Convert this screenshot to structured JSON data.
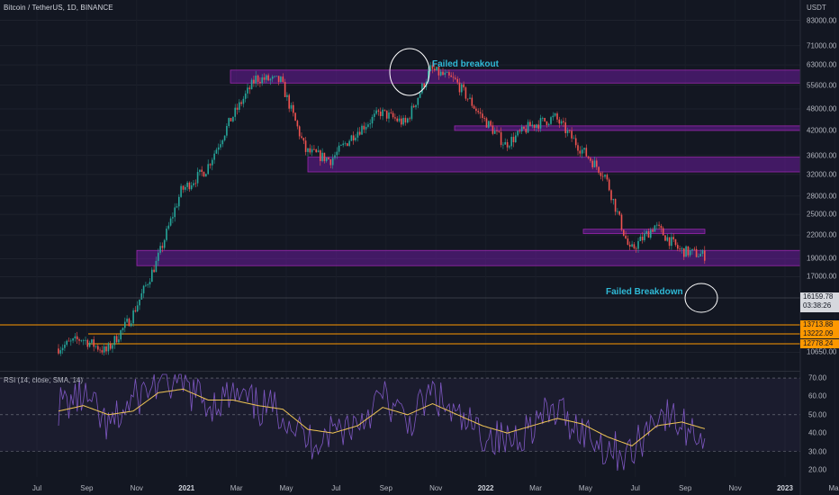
{
  "header": {
    "symbol_line": "Bitcoin / TetherUS, 1D, BINANCE",
    "currency": "USDT"
  },
  "colors": {
    "background": "#131722",
    "up_candle": "#26a69a",
    "down_candle": "#ef5350",
    "zone_fill": "#6a1b9a",
    "zone_border": "#9c27b0",
    "level_line": "#ff9800",
    "annotation": "#2fb9d6",
    "rsi_line": "#7e57c2",
    "rsi_ma": "#f0c555"
  },
  "annotations": {
    "failed_breakout": "Failed breakout",
    "failed_breakdown": "Failed Breakdown"
  },
  "price_axis_labels": [
    "83000.00",
    "71000.00",
    "63000.00",
    "55600.00",
    "48000.00",
    "42000.00",
    "36000.00",
    "32000.00",
    "28000.00",
    "25000.00",
    "22000.00",
    "19000.00",
    "17000.00",
    "10650.00"
  ],
  "current_price": {
    "price": "16159.78",
    "countdown": "03:38:26"
  },
  "level_labels": [
    "13713.88",
    "13222.09",
    "12778.24"
  ],
  "time_axis_labels": [
    {
      "text": "Jul",
      "bold": false
    },
    {
      "text": "Sep",
      "bold": false
    },
    {
      "text": "Nov",
      "bold": false
    },
    {
      "text": "2021",
      "bold": true
    },
    {
      "text": "Mar",
      "bold": false
    },
    {
      "text": "May",
      "bold": false
    },
    {
      "text": "Jul",
      "bold": false
    },
    {
      "text": "Sep",
      "bold": false
    },
    {
      "text": "Nov",
      "bold": false
    },
    {
      "text": "2022",
      "bold": true
    },
    {
      "text": "Mar",
      "bold": false
    },
    {
      "text": "May",
      "bold": false
    },
    {
      "text": "Jul",
      "bold": false
    },
    {
      "text": "Sep",
      "bold": false
    },
    {
      "text": "Nov",
      "bold": false
    },
    {
      "text": "2023",
      "bold": true
    },
    {
      "text": "Mar",
      "bold": false
    }
  ],
  "rsi_panel": {
    "label": "RSI (14, close, SMA, 14)",
    "axis_labels": [
      "70.00",
      "60.00",
      "50.00",
      "40.00",
      "30.00",
      "20.00"
    ]
  },
  "chart_data": [
    {
      "type": "line",
      "series_style": "candlestick",
      "x_unit": "month",
      "x": [
        "2020-07",
        "2020-08",
        "2020-09",
        "2020-10",
        "2020-11",
        "2020-12",
        "2021-01",
        "2021-02",
        "2021-03",
        "2021-04",
        "2021-05",
        "2021-06",
        "2021-07",
        "2021-08",
        "2021-09",
        "2021-10",
        "2021-11",
        "2021-12",
        "2022-01",
        "2022-02",
        "2022-03",
        "2022-04",
        "2022-05",
        "2022-06",
        "2022-07",
        "2022-08",
        "2022-09",
        "2022-10",
        "2022-11"
      ],
      "series": [
        {
          "values": [
            10900,
            11600,
            10700,
            13200,
            18500,
            28900,
            33000,
            45000,
            58000,
            57000,
            37000,
            35000,
            41500,
            47000,
            43800,
            61300,
            57000,
            46200,
            38500,
            43200,
            45500,
            37700,
            31800,
            19900,
            23300,
            20000,
            19400,
            20500,
            16200
          ]
        }
      ],
      "y_scale": "log",
      "ylim": [
        9500,
        90000
      ],
      "zones": [
        {
          "from": "2020-12",
          "to": "2022-11",
          "low": 18200,
          "high": 20000
        },
        {
          "from": "2021-07",
          "to": "2022-11",
          "low": 32500,
          "high": 35600
        },
        {
          "from": "2022-02",
          "to": "2022-11",
          "low": 42000,
          "high": 43200
        },
        {
          "from": "2021-03",
          "to": "2022-11",
          "low": 56300,
          "high": 61000
        },
        {
          "from": "2022-06",
          "to": "2022-09",
          "low": 22200,
          "high": 22800
        }
      ],
      "levels": [
        13713.88,
        13222.09,
        12778.24
      ],
      "last_price": 16159.78
    },
    {
      "type": "line",
      "x_unit": "month",
      "x": [
        "2020-07",
        "2020-08",
        "2020-09",
        "2020-10",
        "2020-11",
        "2020-12",
        "2021-01",
        "2021-02",
        "2021-03",
        "2021-04",
        "2021-05",
        "2021-06",
        "2021-07",
        "2021-08",
        "2021-09",
        "2021-10",
        "2021-11",
        "2021-12",
        "2022-01",
        "2022-02",
        "2022-03",
        "2022-04",
        "2022-05",
        "2022-06",
        "2022-07",
        "2022-08",
        "2022-09",
        "2022-10",
        "2022-11"
      ],
      "series": [
        {
          "values": [
            55,
            60,
            42,
            58,
            68,
            66,
            56,
            60,
            54,
            52,
            35,
            42,
            46,
            60,
            45,
            62,
            47,
            40,
            35,
            45,
            52,
            42,
            32,
            28,
            52,
            44,
            38,
            54,
            33
          ]
        },
        {
          "values": [
            52,
            55,
            50,
            52,
            62,
            64,
            58,
            58,
            55,
            53,
            42,
            40,
            44,
            54,
            50,
            56,
            50,
            44,
            40,
            44,
            48,
            45,
            38,
            33,
            44,
            46,
            42,
            50,
            38
          ]
        }
      ],
      "ylim": [
        16,
        73
      ],
      "bands": [
        70,
        30
      ]
    }
  ]
}
